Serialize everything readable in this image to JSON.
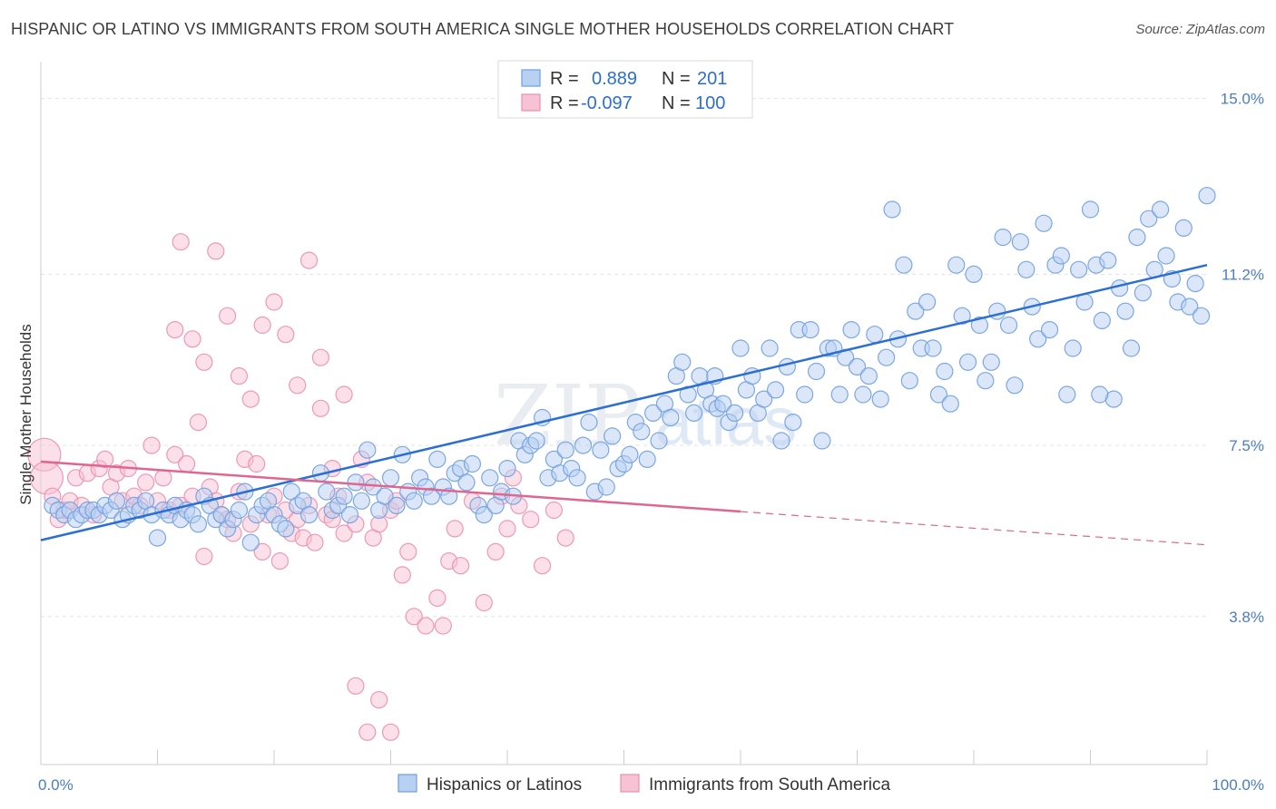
{
  "title": "HISPANIC OR LATINO VS IMMIGRANTS FROM SOUTH AMERICA SINGLE MOTHER HOUSEHOLDS CORRELATION CHART",
  "source": "Source: ZipAtlas.com",
  "watermark": {
    "zip": "ZIP",
    "atlas": "atlas"
  },
  "colors": {
    "blue_fill": "#b8d0f2",
    "blue_stroke": "#6f9ee0",
    "blue_line": "#2b6fd2",
    "pink_fill": "#f7c2d3",
    "pink_stroke": "#ec8fae",
    "pink_line": "#e0668f",
    "grid": "#e3e3e3",
    "tick_text": "#4a7cc9"
  },
  "legend": {
    "rows": [
      {
        "r_label": "R =",
        "r_value": "0.889",
        "n_label": "N =",
        "n_value": "201"
      },
      {
        "r_label": "R =",
        "r_value": "-0.097",
        "n_label": "N =",
        "n_value": "100"
      }
    ]
  },
  "chart_data": {
    "type": "scatter",
    "title": "HISPANIC OR LATINO VS IMMIGRANTS FROM SOUTH AMERICA SINGLE MOTHER HOUSEHOLDS CORRELATION CHART",
    "xlabel": "",
    "ylabel": "Single Mother Households",
    "xlim": [
      0,
      100
    ],
    "ylim": [
      0.6,
      15.6
    ],
    "y_ticks": [
      {
        "value": 15.0,
        "label": "15.0%"
      },
      {
        "value": 11.2,
        "label": "11.2%"
      },
      {
        "value": 7.5,
        "label": "7.5%"
      },
      {
        "value": 3.8,
        "label": "3.8%"
      }
    ],
    "x_tick_labels": [
      {
        "value": 0,
        "label": "0.0%"
      },
      {
        "value": 100,
        "label": "100.0%"
      }
    ],
    "grid": true,
    "legend_position": "top-center",
    "series": [
      {
        "name": "Hispanics or Latinos",
        "color": "#6f9ee0",
        "trend": {
          "x0": 0,
          "y0": 5.45,
          "x1": 100,
          "y1": 11.4,
          "dashed_from": null
        },
        "points": [
          [
            1,
            6.2
          ],
          [
            1.5,
            6.1
          ],
          [
            2,
            6.0
          ],
          [
            2.5,
            6.1
          ],
          [
            3,
            5.9
          ],
          [
            3.5,
            6.0
          ],
          [
            4,
            6.1
          ],
          [
            4.5,
            6.1
          ],
          [
            5,
            6.0
          ],
          [
            5.5,
            6.2
          ],
          [
            6,
            6.1
          ],
          [
            6.5,
            6.3
          ],
          [
            7,
            5.9
          ],
          [
            7.5,
            6.0
          ],
          [
            8,
            6.2
          ],
          [
            8.5,
            6.1
          ],
          [
            9,
            6.3
          ],
          [
            9.5,
            6.0
          ],
          [
            10,
            5.5
          ],
          [
            10.5,
            6.1
          ],
          [
            11,
            6.0
          ],
          [
            11.5,
            6.2
          ],
          [
            12,
            5.9
          ],
          [
            12.5,
            6.1
          ],
          [
            13,
            6.0
          ],
          [
            13.5,
            5.8
          ],
          [
            14,
            6.4
          ],
          [
            14.5,
            6.2
          ],
          [
            15,
            5.9
          ],
          [
            15.5,
            6.0
          ],
          [
            16,
            5.7
          ],
          [
            16.5,
            5.9
          ],
          [
            17,
            6.1
          ],
          [
            17.5,
            6.5
          ],
          [
            18,
            5.4
          ],
          [
            18.5,
            6.0
          ],
          [
            19,
            6.2
          ],
          [
            19.5,
            6.3
          ],
          [
            20,
            6.0
          ],
          [
            20.5,
            5.8
          ],
          [
            21,
            5.7
          ],
          [
            21.5,
            6.5
          ],
          [
            22,
            6.2
          ],
          [
            22.5,
            6.3
          ],
          [
            23,
            6.0
          ],
          [
            24,
            6.9
          ],
          [
            24.5,
            6.5
          ],
          [
            25,
            6.1
          ],
          [
            25.5,
            6.2
          ],
          [
            26,
            6.4
          ],
          [
            26.5,
            6.0
          ],
          [
            27,
            6.7
          ],
          [
            27.5,
            6.3
          ],
          [
            28,
            7.4
          ],
          [
            28.5,
            6.6
          ],
          [
            29,
            6.1
          ],
          [
            29.5,
            6.4
          ],
          [
            30,
            6.8
          ],
          [
            30.5,
            6.2
          ],
          [
            31,
            7.3
          ],
          [
            31.5,
            6.5
          ],
          [
            32,
            6.3
          ],
          [
            32.5,
            6.8
          ],
          [
            33,
            6.6
          ],
          [
            33.5,
            6.4
          ],
          [
            34,
            7.2
          ],
          [
            34.5,
            6.6
          ],
          [
            35,
            6.4
          ],
          [
            35.5,
            6.9
          ],
          [
            36,
            7.0
          ],
          [
            36.5,
            6.7
          ],
          [
            37,
            7.1
          ],
          [
            37.5,
            6.2
          ],
          [
            38,
            6.0
          ],
          [
            38.5,
            6.8
          ],
          [
            39,
            6.2
          ],
          [
            39.5,
            6.5
          ],
          [
            40,
            7.0
          ],
          [
            40.5,
            6.4
          ],
          [
            41,
            7.6
          ],
          [
            41.5,
            7.3
          ],
          [
            42,
            7.5
          ],
          [
            42.5,
            7.6
          ],
          [
            43,
            8.1
          ],
          [
            43.5,
            6.8
          ],
          [
            44,
            7.2
          ],
          [
            44.5,
            6.9
          ],
          [
            45,
            7.4
          ],
          [
            45.5,
            7.0
          ],
          [
            46,
            6.8
          ],
          [
            46.5,
            7.5
          ],
          [
            47,
            8.0
          ],
          [
            47.5,
            6.5
          ],
          [
            48,
            7.4
          ],
          [
            48.5,
            6.6
          ],
          [
            49,
            7.7
          ],
          [
            49.5,
            7.0
          ],
          [
            50,
            7.1
          ],
          [
            50.5,
            7.3
          ],
          [
            51,
            8.0
          ],
          [
            51.5,
            7.8
          ],
          [
            52,
            7.2
          ],
          [
            52.5,
            8.2
          ],
          [
            53,
            7.6
          ],
          [
            53.5,
            8.4
          ],
          [
            54,
            8.1
          ],
          [
            54.5,
            9.0
          ],
          [
            55,
            9.3
          ],
          [
            55.5,
            8.6
          ],
          [
            56,
            8.2
          ],
          [
            56.5,
            9.0
          ],
          [
            57,
            8.7
          ],
          [
            57.5,
            8.4
          ],
          [
            58,
            8.3
          ],
          [
            58.5,
            8.4
          ],
          [
            59,
            8.0
          ],
          [
            59.5,
            8.2
          ],
          [
            60,
            9.6
          ],
          [
            60.5,
            8.7
          ],
          [
            61,
            9.0
          ],
          [
            61.5,
            8.2
          ],
          [
            62,
            8.5
          ],
          [
            62.5,
            9.6
          ],
          [
            63,
            8.7
          ],
          [
            63.5,
            7.6
          ],
          [
            64,
            9.2
          ],
          [
            64.5,
            8.0
          ],
          [
            65,
            10.0
          ],
          [
            65.5,
            8.6
          ],
          [
            66,
            10.0
          ],
          [
            66.5,
            9.1
          ],
          [
            67,
            7.6
          ],
          [
            67.5,
            9.6
          ],
          [
            68,
            9.6
          ],
          [
            68.5,
            8.6
          ],
          [
            69,
            9.4
          ],
          [
            69.5,
            10.0
          ],
          [
            70,
            9.2
          ],
          [
            70.5,
            8.6
          ],
          [
            71,
            9.0
          ],
          [
            71.5,
            9.9
          ],
          [
            72,
            8.5
          ],
          [
            72.5,
            9.4
          ],
          [
            73,
            12.6
          ],
          [
            73.5,
            9.8
          ],
          [
            74,
            11.4
          ],
          [
            74.5,
            8.9
          ],
          [
            75,
            10.4
          ],
          [
            75.5,
            9.6
          ],
          [
            76,
            10.6
          ],
          [
            76.5,
            9.6
          ],
          [
            77,
            8.6
          ],
          [
            77.5,
            9.1
          ],
          [
            78,
            8.4
          ],
          [
            78.5,
            11.4
          ],
          [
            79,
            10.3
          ],
          [
            79.5,
            9.3
          ],
          [
            80,
            11.2
          ],
          [
            80.5,
            10.1
          ],
          [
            81,
            8.9
          ],
          [
            81.5,
            9.3
          ],
          [
            82,
            10.4
          ],
          [
            82.5,
            12.0
          ],
          [
            83,
            10.1
          ],
          [
            83.5,
            8.8
          ],
          [
            84,
            11.9
          ],
          [
            84.5,
            11.3
          ],
          [
            85,
            10.5
          ],
          [
            85.5,
            9.8
          ],
          [
            86,
            12.3
          ],
          [
            86.5,
            10.0
          ],
          [
            87,
            11.4
          ],
          [
            87.5,
            11.6
          ],
          [
            88,
            8.6
          ],
          [
            88.5,
            9.6
          ],
          [
            89,
            11.3
          ],
          [
            89.5,
            10.6
          ],
          [
            90,
            12.6
          ],
          [
            90.5,
            11.4
          ],
          [
            91,
            10.2
          ],
          [
            91.5,
            11.5
          ],
          [
            92,
            8.5
          ],
          [
            92.5,
            10.9
          ],
          [
            93,
            10.4
          ],
          [
            93.5,
            9.6
          ],
          [
            94,
            12.0
          ],
          [
            94.5,
            10.8
          ],
          [
            95,
            12.4
          ],
          [
            95.5,
            11.3
          ],
          [
            96,
            12.6
          ],
          [
            96.5,
            11.6
          ],
          [
            97,
            11.1
          ],
          [
            97.5,
            10.6
          ],
          [
            98,
            12.2
          ],
          [
            98.5,
            10.5
          ],
          [
            99,
            11.0
          ],
          [
            99.5,
            10.3
          ],
          [
            100,
            12.9
          ],
          [
            90.8,
            8.6
          ],
          [
            57.8,
            9.0
          ]
        ]
      },
      {
        "name": "Immigrants from South America",
        "color": "#ec8fae",
        "trend": {
          "x0": 0,
          "y0": 7.15,
          "x1": 100,
          "y1": 5.35,
          "dashed_from": 60
        },
        "points": [
          [
            0.3,
            7.3
          ],
          [
            0.5,
            6.8
          ],
          [
            1,
            6.4
          ],
          [
            1.5,
            5.9
          ],
          [
            2,
            6.1
          ],
          [
            2.5,
            6.3
          ],
          [
            3,
            6.8
          ],
          [
            3.5,
            6.2
          ],
          [
            4,
            6.9
          ],
          [
            4.5,
            6.0
          ],
          [
            5,
            7.0
          ],
          [
            5.5,
            7.2
          ],
          [
            6,
            6.6
          ],
          [
            6.5,
            6.9
          ],
          [
            7,
            6.3
          ],
          [
            7.5,
            7.0
          ],
          [
            8,
            6.4
          ],
          [
            8.5,
            6.2
          ],
          [
            9,
            6.7
          ],
          [
            9.5,
            7.5
          ],
          [
            10,
            6.3
          ],
          [
            10.5,
            6.8
          ],
          [
            11,
            6.1
          ],
          [
            11.5,
            7.3
          ],
          [
            12,
            6.2
          ],
          [
            12.5,
            7.1
          ],
          [
            13,
            6.4
          ],
          [
            13.5,
            8.0
          ],
          [
            14,
            5.1
          ],
          [
            14.5,
            6.6
          ],
          [
            15,
            6.3
          ],
          [
            15.5,
            6.0
          ],
          [
            16,
            5.9
          ],
          [
            16.5,
            5.6
          ],
          [
            17,
            6.5
          ],
          [
            17.5,
            7.2
          ],
          [
            18,
            5.8
          ],
          [
            18.5,
            7.1
          ],
          [
            19,
            5.2
          ],
          [
            19.5,
            6.0
          ],
          [
            20,
            6.4
          ],
          [
            20.5,
            5.0
          ],
          [
            21,
            6.1
          ],
          [
            21.5,
            5.6
          ],
          [
            22,
            5.9
          ],
          [
            22.5,
            5.5
          ],
          [
            23,
            6.2
          ],
          [
            23.5,
            5.4
          ],
          [
            24,
            8.3
          ],
          [
            24.5,
            6.0
          ],
          [
            25,
            5.9
          ],
          [
            25.5,
            6.4
          ],
          [
            26,
            5.6
          ],
          [
            27,
            5.8
          ],
          [
            27.5,
            7.2
          ],
          [
            28,
            6.7
          ],
          [
            28.5,
            5.5
          ],
          [
            29,
            5.8
          ],
          [
            30,
            6.1
          ],
          [
            30.5,
            6.3
          ],
          [
            31,
            4.7
          ],
          [
            31.5,
            5.2
          ],
          [
            32,
            3.8
          ],
          [
            33,
            3.6
          ],
          [
            34,
            4.2
          ],
          [
            34.5,
            3.6
          ],
          [
            35,
            5.0
          ],
          [
            35.5,
            5.7
          ],
          [
            36,
            4.9
          ],
          [
            37,
            6.3
          ],
          [
            38,
            4.1
          ],
          [
            39,
            5.2
          ],
          [
            39.5,
            6.4
          ],
          [
            40,
            5.7
          ],
          [
            40.5,
            6.8
          ],
          [
            41,
            6.2
          ],
          [
            42,
            5.9
          ],
          [
            43,
            4.9
          ],
          [
            44,
            6.1
          ],
          [
            45,
            5.5
          ],
          [
            11.5,
            10.0
          ],
          [
            12,
            11.9
          ],
          [
            13,
            9.8
          ],
          [
            14,
            9.3
          ],
          [
            15,
            11.7
          ],
          [
            16,
            10.3
          ],
          [
            17,
            9.0
          ],
          [
            18,
            8.5
          ],
          [
            19,
            10.1
          ],
          [
            20,
            10.6
          ],
          [
            21,
            9.9
          ],
          [
            22,
            8.8
          ],
          [
            23,
            11.5
          ],
          [
            24,
            9.4
          ],
          [
            25,
            7.0
          ],
          [
            26,
            8.6
          ],
          [
            27,
            2.3
          ],
          [
            28,
            1.3
          ],
          [
            29,
            2.0
          ],
          [
            30,
            1.3
          ]
        ]
      }
    ]
  }
}
